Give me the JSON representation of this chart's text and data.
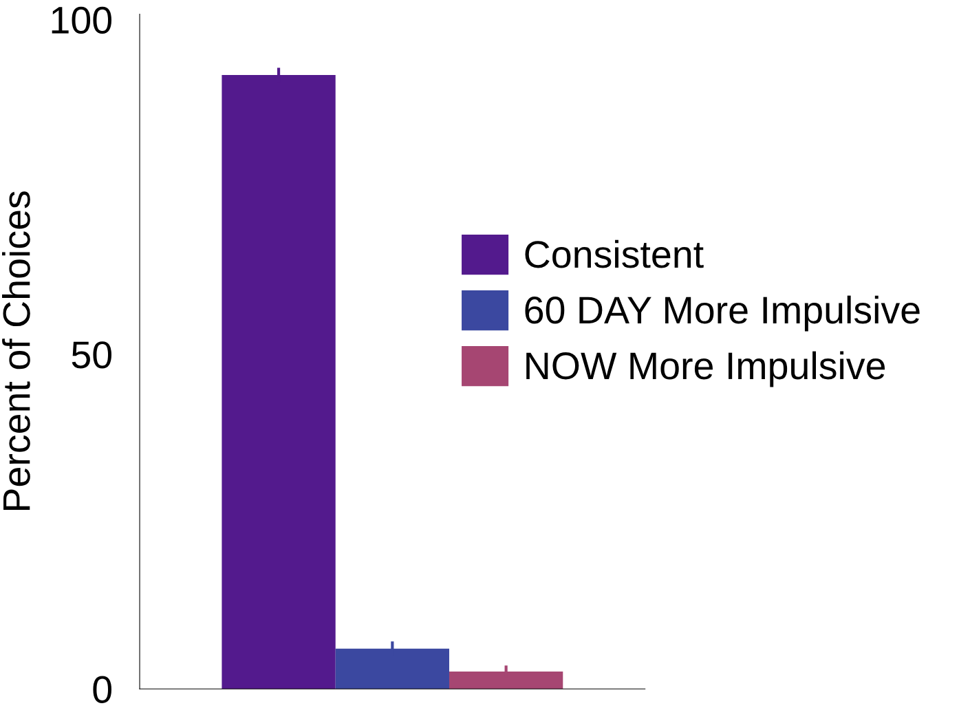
{
  "chart_data": {
    "type": "bar",
    "ylabel": "Percent of Choices",
    "categories": [
      null
    ],
    "series": [
      {
        "name": "Consistent",
        "color": "#531a8d",
        "values": [
          91.7
        ],
        "errors": [
          1.1
        ]
      },
      {
        "name": "60 DAY More Impulsive",
        "color": "#3b48a0",
        "values": [
          6.0
        ],
        "errors": [
          1.1
        ]
      },
      {
        "name": "NOW More Impulsive",
        "color": "#a64672",
        "values": [
          2.6
        ],
        "errors": [
          0.9
        ]
      }
    ],
    "ylim": [
      0,
      100.8
    ],
    "yticks": [
      0,
      50,
      100
    ],
    "grid": false,
    "legend": "right"
  }
}
